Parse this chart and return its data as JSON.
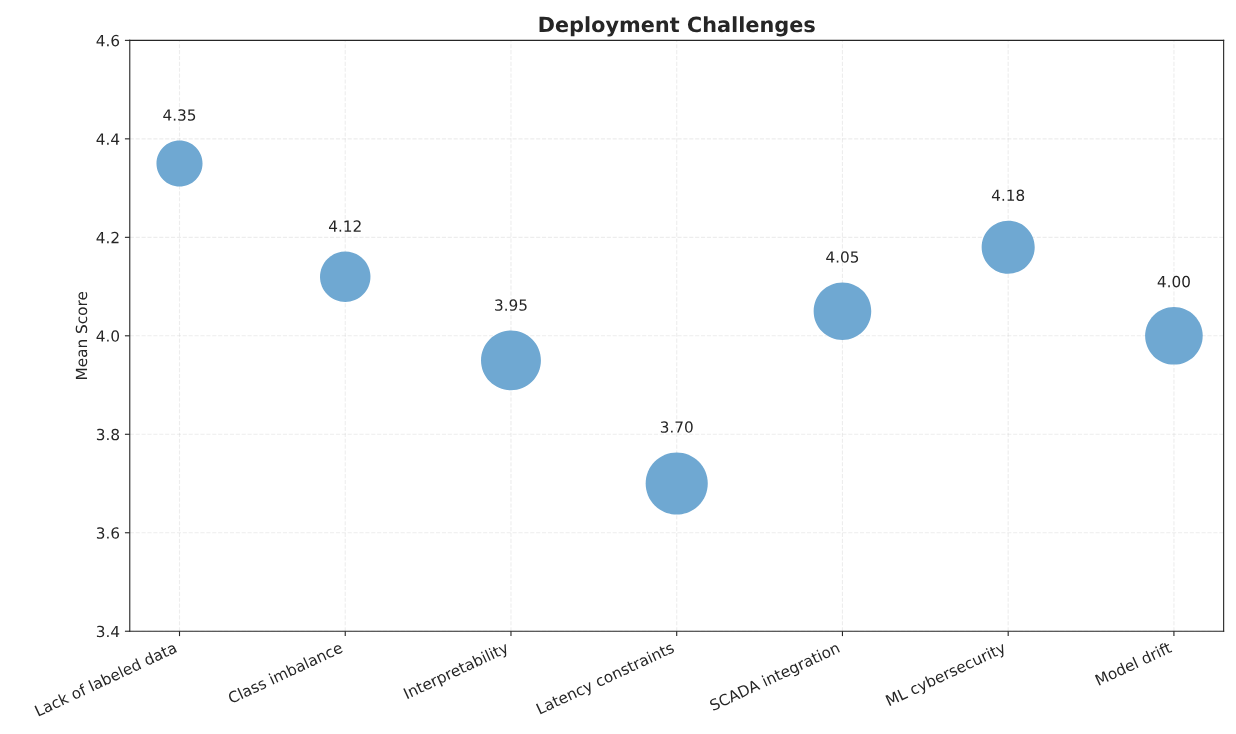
{
  "chart_data": {
    "type": "bubble",
    "title": "Deployment Challenges",
    "ylabel": "Mean Score",
    "categories": [
      "Lack of labeled data",
      "Class imbalance",
      "Interpretability",
      "Latency constraints",
      "SCADA integration",
      "ML cybersecurity",
      "Model drift"
    ],
    "values": [
      4.35,
      4.12,
      3.95,
      3.7,
      4.05,
      4.18,
      4.0
    ],
    "value_labels": [
      "4.35",
      "4.12",
      "3.95",
      "3.70",
      "4.05",
      "4.18",
      "4.00"
    ],
    "sizes": [
      0.55,
      0.66,
      0.93,
      1,
      0.86,
      0.73,
      0.86
    ],
    "color": "#6fa8d2",
    "ylim": [
      3.4,
      4.6
    ],
    "yticks": [
      {
        "value": 3.4,
        "label": "3.4"
      },
      {
        "value": 3.6,
        "label": "3.6"
      },
      {
        "value": 3.8,
        "label": "3.8"
      },
      {
        "value": 4.0,
        "label": "4.0"
      },
      {
        "value": 4.2,
        "label": "4.2"
      },
      {
        "value": 4.4,
        "label": "4.4"
      },
      {
        "value": 4.6,
        "label": "4.6"
      }
    ],
    "grid": true
  }
}
